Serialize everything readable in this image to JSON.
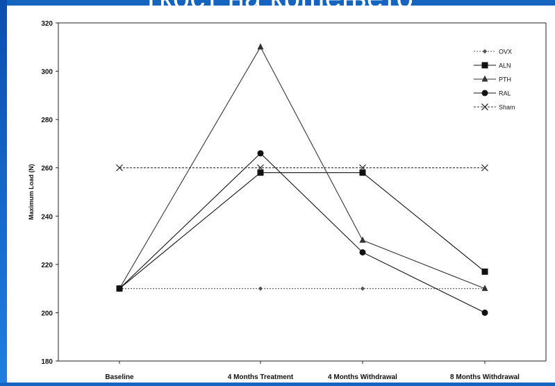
{
  "slide": {
    "title": "Ткост на кршењето",
    "background_color": "#1565c0"
  },
  "chart_data": {
    "type": "line",
    "title": "",
    "xlabel": "",
    "ylabel": "Maximum Load (N)",
    "ylim": [
      180,
      320
    ],
    "yticks": [
      180,
      200,
      220,
      240,
      260,
      280,
      300,
      320
    ],
    "categories": [
      "Baseline",
      "4 Months Treatment",
      "4 Months Withdrawal",
      "8 Months Withdrawal"
    ],
    "grid": false,
    "legend_position": "top-right",
    "series": [
      {
        "name": "OVX",
        "values": [
          210,
          210,
          210,
          210
        ],
        "marker": "diamond",
        "dash": "dotted",
        "color": "#555555"
      },
      {
        "name": "ALN",
        "values": [
          210,
          258,
          258,
          217
        ],
        "marker": "square",
        "dash": "solid",
        "color": "#111111"
      },
      {
        "name": "PTH",
        "values": [
          210,
          310,
          230,
          210
        ],
        "marker": "triangle",
        "dash": "solid",
        "color": "#333333"
      },
      {
        "name": "RAL",
        "values": [
          210,
          266,
          225,
          200
        ],
        "marker": "circle",
        "dash": "solid",
        "color": "#111111"
      },
      {
        "name": "Sham",
        "values": [
          260,
          260,
          260,
          260
        ],
        "marker": "x",
        "dash": "dashed",
        "color": "#333333"
      }
    ]
  }
}
